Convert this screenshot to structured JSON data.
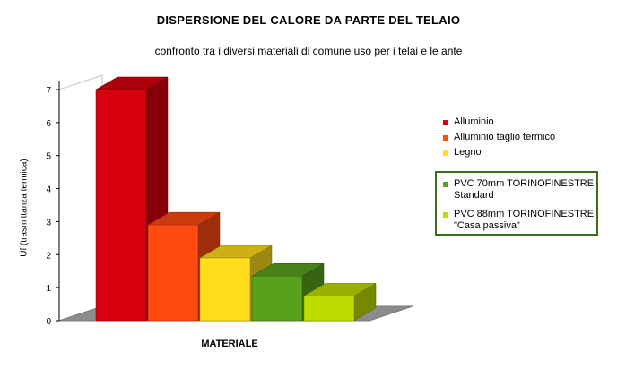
{
  "chart_data": {
    "type": "bar",
    "title": "DISPERSIONE DEL CALORE DA PARTE DEL TELAIO",
    "subtitle": "confronto tra i diversi materiali di comune uso per i telai e le ante",
    "xlabel": "MATERIALE",
    "ylabel": "Uf (trasmittanza termica)",
    "ylim": [
      0,
      7
    ],
    "yticks": [
      "0",
      "1",
      "2",
      "3",
      "4",
      "5",
      "6",
      "7"
    ],
    "grid": false,
    "legend_position": "right",
    "series": [
      {
        "name": "Alluminio",
        "value": 7.0,
        "color": "#d9000f"
      },
      {
        "name": "Alluminio taglio termico",
        "value": 2.9,
        "color": "#ff4a12"
      },
      {
        "name": "Legno",
        "value": 1.9,
        "color": "#ffdc1c"
      },
      {
        "name": "PVC 70mm TORINOFINESTRE Standard",
        "value": 1.35,
        "color": "#59a11d"
      },
      {
        "name": "PVC 88mm TORINOFINESTRE \"Casa passiva\"",
        "value": 0.75,
        "color": "#bfdc00"
      }
    ]
  }
}
